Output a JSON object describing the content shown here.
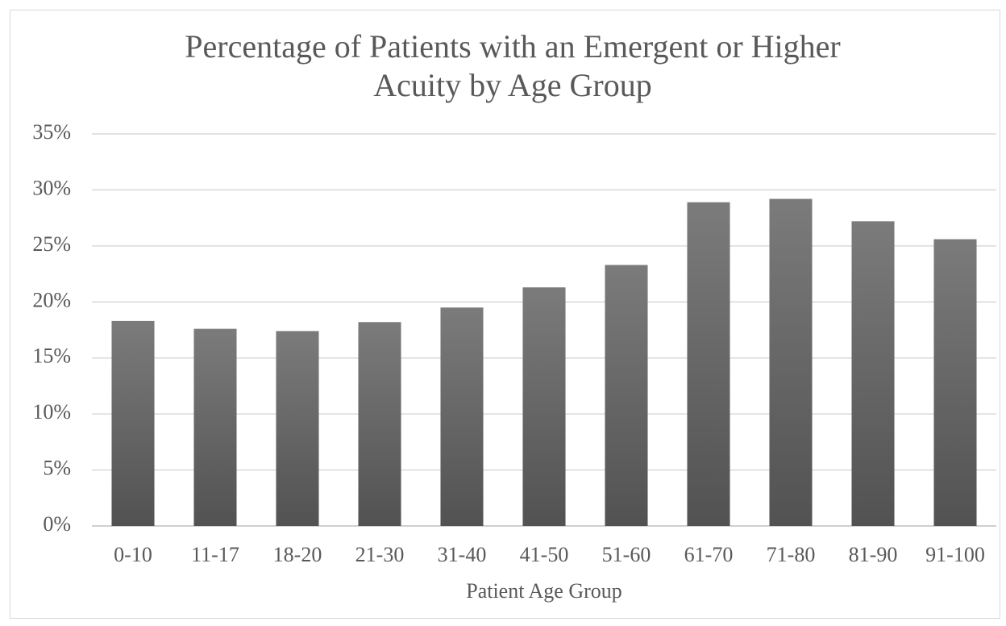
{
  "chart_data": {
    "type": "bar",
    "title": [
      "Percentage of Patients with an Emergent or Higher",
      "Acuity by Age Group"
    ],
    "x_label": "Patient Age Group",
    "categories": [
      "0-10",
      "11-17",
      "18-20",
      "21-30",
      "31-40",
      "41-50",
      "51-60",
      "61-70",
      "71-80",
      "81-90",
      "91-100"
    ],
    "values": [
      18.3,
      17.6,
      17.4,
      18.2,
      19.5,
      21.3,
      23.3,
      28.9,
      29.2,
      27.2,
      25.6
    ],
    "color": [
      "#7b7b7b",
      "#525252"
    ],
    "ylim": [
      0,
      35
    ],
    "yticks": [
      {
        "value": 0,
        "label": "0%"
      },
      {
        "value": 5,
        "label": "5%"
      },
      {
        "value": 10,
        "label": "10%"
      },
      {
        "value": 15,
        "label": "15%"
      },
      {
        "value": 20,
        "label": "20%"
      },
      {
        "value": 25,
        "label": "25%"
      },
      {
        "value": 30,
        "label": "30%"
      },
      {
        "value": 35,
        "label": "35%"
      }
    ],
    "grid": true
  }
}
